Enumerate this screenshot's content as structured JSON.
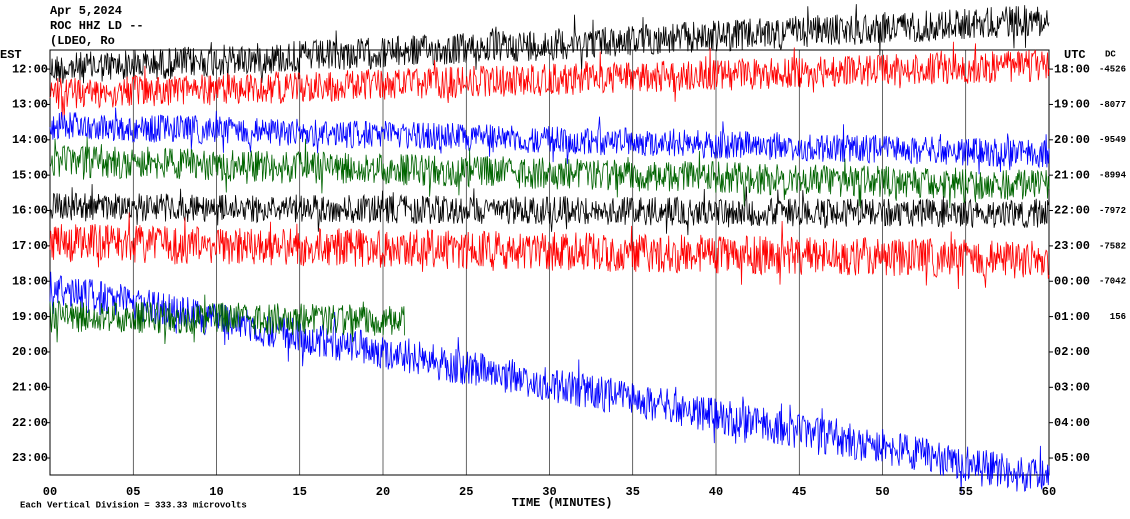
{
  "chart_data": {
    "type": "helicorder",
    "header": [
      "Apr 5,2024",
      "ROC HHZ LD --",
      "(LDEO, Ro"
    ],
    "left_axis_title": "EST",
    "right_axis_title": "UTC",
    "dc_title": "DC",
    "xlabel": "TIME (MINUTES)",
    "footer": "Each Vertical Division =  333.33 microvolts",
    "xlim": [
      0,
      60
    ],
    "xticks": [
      {
        "value": 0,
        "label": "00"
      },
      {
        "value": 5,
        "label": "05"
      },
      10,
      15,
      20,
      25,
      30,
      35,
      40,
      45,
      50,
      55,
      60
    ],
    "ylim": [
      11.46,
      23.48
    ],
    "yticks": [
      {
        "value": 12,
        "label": "12:00"
      },
      {
        "value": 13,
        "label": "13:00"
      },
      {
        "value": 14,
        "label": "14:00"
      },
      {
        "value": 15,
        "label": "15:00"
      },
      {
        "value": 16,
        "label": "16:00"
      },
      {
        "value": 17,
        "label": "17:00"
      },
      {
        "value": 18,
        "label": "18:00"
      },
      {
        "value": 19,
        "label": "19:00"
      },
      {
        "value": 20,
        "label": "20:00"
      },
      {
        "value": 21,
        "label": "21:00"
      },
      {
        "value": 22,
        "label": "22:00"
      },
      {
        "value": 23,
        "label": "23:00"
      }
    ],
    "y2ticks": [
      {
        "value": 12,
        "label": "18:00"
      },
      {
        "value": 13,
        "label": "19:00"
      },
      {
        "value": 14,
        "label": "20:00"
      },
      {
        "value": 15,
        "label": "21:00"
      },
      {
        "value": 16,
        "label": "22:00"
      },
      {
        "value": 17,
        "label": "23:00"
      },
      {
        "value": 18,
        "label": "00:00"
      },
      {
        "value": 19,
        "label": "01:00"
      },
      {
        "value": 20,
        "label": "02:00"
      },
      {
        "value": 21,
        "label": "03:00"
      },
      {
        "value": 22,
        "label": "04:00"
      },
      {
        "value": 23,
        "label": "05:00"
      }
    ],
    "dc": [
      -4526,
      -8077,
      -9549,
      -8994,
      -7972,
      -7582,
      -7042,
      156
    ],
    "traces": [
      {
        "color": "#000000",
        "start": 12.0,
        "end": 10.6,
        "amplitude": 0.45,
        "end_minute": 60
      },
      {
        "color": "#ff0000",
        "start": 12.7,
        "end": 11.9,
        "amplitude": 0.45,
        "end_minute": 60
      },
      {
        "color": "#0000ff",
        "start": 13.6,
        "end": 14.4,
        "amplitude": 0.4,
        "end_minute": 60
      },
      {
        "color": "#006400",
        "start": 14.6,
        "end": 15.3,
        "amplitude": 0.45,
        "end_minute": 60
      },
      {
        "color": "#000000",
        "start": 15.9,
        "end": 16.1,
        "amplitude": 0.4,
        "end_minute": 60
      },
      {
        "color": "#ff0000",
        "start": 16.9,
        "end": 17.4,
        "amplitude": 0.55,
        "end_minute": 60
      },
      {
        "color": "#0000ff",
        "start": 18.2,
        "end": 23.6,
        "amplitude": 0.5,
        "end_minute": 60
      },
      {
        "color": "#006400",
        "start": 19.0,
        "end": 19.3,
        "amplitude": 0.45,
        "end_minute": 21.3
      }
    ]
  }
}
